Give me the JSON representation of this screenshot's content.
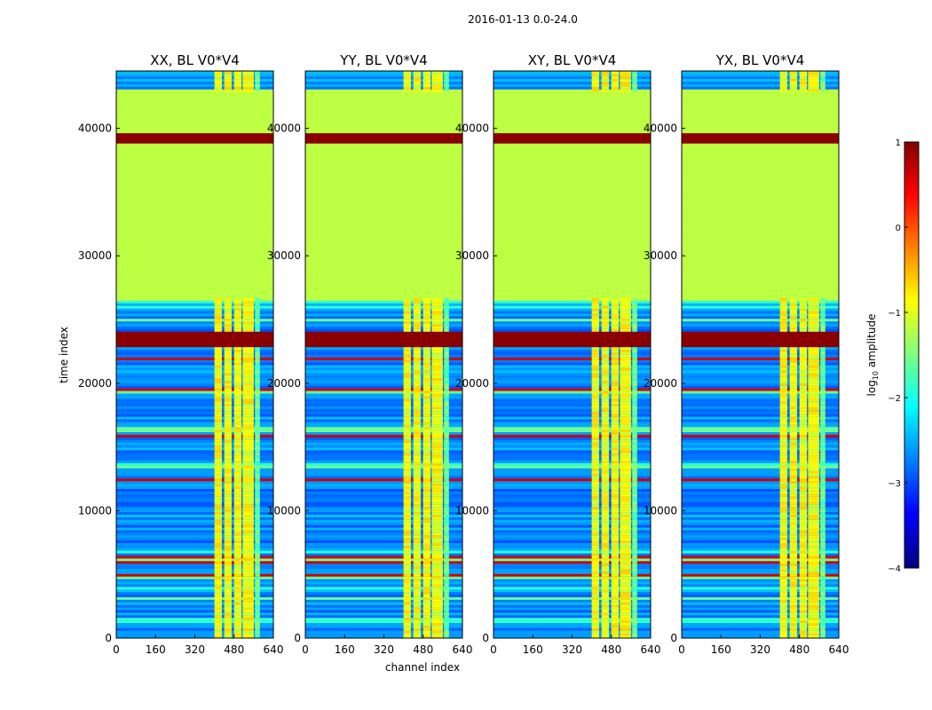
{
  "chart_data": {
    "type": "heatmap",
    "suptitle": "2016-01-13 0.0-24.0",
    "xlabel": "channel index",
    "ylabel": "time index",
    "xlim": [
      0,
      640
    ],
    "ylim": [
      0,
      44500
    ],
    "xticks": [
      0,
      160,
      320,
      480,
      640
    ],
    "yticks": [
      0,
      10000,
      20000,
      30000,
      40000
    ],
    "panels": [
      {
        "title": "XX, BL V0*V4"
      },
      {
        "title": "YY, BL V0*V4"
      },
      {
        "title": "XY, BL V0*V4"
      },
      {
        "title": "YX, BL V0*V4"
      }
    ],
    "colorbar": {
      "label_prefix": "log",
      "label_sub": "10",
      "label_suffix": " amplitude",
      "range": [
        -4,
        1
      ],
      "ticks": [
        1,
        0,
        -1,
        -2,
        -3,
        -4
      ],
      "tick_labels": [
        "1",
        "0",
        "−1",
        "−2",
        "−3",
        "−4"
      ]
    },
    "structure": {
      "flagged_block_time": [
        26500,
        43000
      ],
      "flagged_block_value": -1.2,
      "saturated_band_time": [
        38800,
        39700
      ],
      "saturated_band_value": 0.95,
      "rfi_channel_band": [
        400,
        600
      ],
      "rfi_level": -0.9,
      "background_level": -2.7
    }
  },
  "colors": {
    "colormap": "jet",
    "frame": "#000000"
  }
}
